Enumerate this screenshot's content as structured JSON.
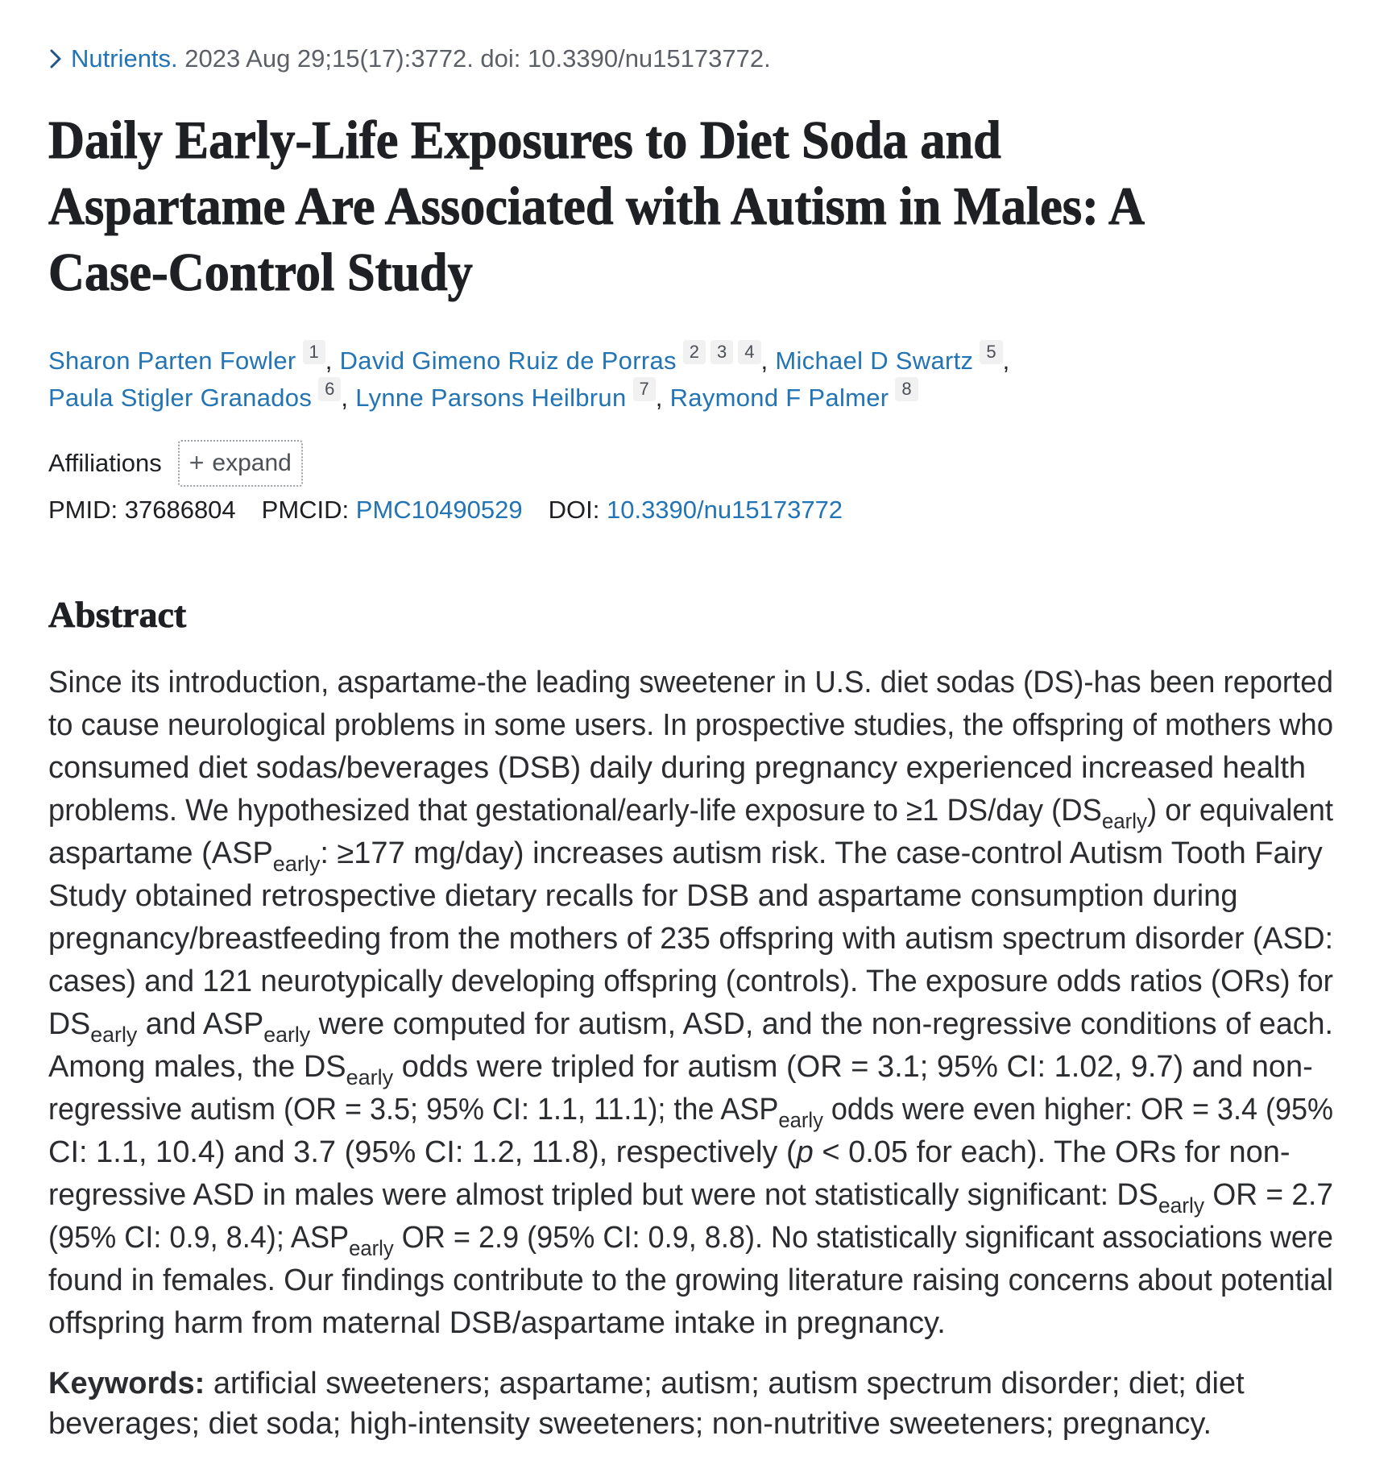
{
  "citation": {
    "journal": "Nutrients.",
    "rest": " 2023 Aug 29;15(17):3772. doi: 10.3390/nu15173772."
  },
  "title_lines": [
    "Daily Early-Life Exposures to Diet Soda and",
    "Aspartame Are Associated with Autism in Males: A",
    "Case-Control Study"
  ],
  "author_rows": [
    [
      {
        "name": "Sharon Parten Fowler",
        "sups": [
          "1"
        ],
        "sep": ", "
      },
      {
        "name": "David Gimeno Ruiz de Porras",
        "sups": [
          "2",
          "3",
          "4"
        ],
        "sep": ", "
      },
      {
        "name": "Michael D Swartz",
        "sups": [
          "5"
        ],
        "sep": ", "
      }
    ],
    [
      {
        "name": "Paula Stigler Granados",
        "sups": [
          "6"
        ],
        "sep": ", "
      },
      {
        "name": "Lynne Parsons Heilbrun",
        "sups": [
          "7"
        ],
        "sep": ", "
      },
      {
        "name": "Raymond F Palmer",
        "sups": [
          "8"
        ],
        "sep": ""
      }
    ]
  ],
  "affiliations": {
    "label": "Affiliations",
    "expand_plus": "+",
    "expand_label": "expand"
  },
  "ids": [
    {
      "label": "PMID: ",
      "value": "37686804",
      "link": false
    },
    {
      "label": "PMCID: ",
      "value": "PMC10490529",
      "link": true
    },
    {
      "label": "DOI: ",
      "value": "10.3390/nu15173772",
      "link": true
    }
  ],
  "abstract": {
    "heading": "Abstract",
    "lines": [
      [
        {
          "t": "Since its introduction, aspartame-the leading sweetener in U.S. diet sodas (DS)-has been reported"
        }
      ],
      [
        {
          "t": "to cause neurological problems in some users. In prospective studies, the offspring of mothers who"
        }
      ],
      [
        {
          "t": "consumed diet sodas/beverages (DSB) daily during pregnancy experienced increased health"
        }
      ],
      [
        {
          "t": "problems. We hypothesized that gestational/early-life exposure to ≥1 DS/day (DS"
        },
        {
          "t": "early",
          "s": "sub"
        },
        {
          "t": ") or equivalent"
        }
      ],
      [
        {
          "t": "aspartame (ASP"
        },
        {
          "t": "early",
          "s": "sub"
        },
        {
          "t": ": ≥177 mg/day) increases autism risk. The case-control Autism Tooth Fairy"
        }
      ],
      [
        {
          "t": "Study obtained retrospective dietary recalls for DSB and aspartame consumption during"
        }
      ],
      [
        {
          "t": "pregnancy/breastfeeding from the mothers of 235 offspring with autism spectrum disorder (ASD:"
        }
      ],
      [
        {
          "t": "cases) and 121 neurotypically developing offspring (controls). The exposure odds ratios (ORs) for"
        }
      ],
      [
        {
          "t": "DS"
        },
        {
          "t": "early",
          "s": "sub"
        },
        {
          "t": " and ASP"
        },
        {
          "t": "early",
          "s": "sub"
        },
        {
          "t": " were computed for autism, ASD, and the non-regressive conditions of each."
        }
      ],
      [
        {
          "t": "Among males, the DS"
        },
        {
          "t": "early",
          "s": "sub"
        },
        {
          "t": " odds were tripled for autism (OR = 3.1; 95% CI: 1.02, 9.7) and non-"
        }
      ],
      [
        {
          "t": "regressive autism (OR = 3.5; 95% CI: 1.1, 11.1); the ASP"
        },
        {
          "t": "early",
          "s": "sub"
        },
        {
          "t": " odds were even higher: OR = 3.4 (95%"
        }
      ],
      [
        {
          "t": "CI: 1.1, 10.4) and 3.7 (95% CI: 1.2, 11.8), respectively ("
        },
        {
          "t": "p",
          "s": "it"
        },
        {
          "t": " < 0.05 for each). The ORs for non-"
        }
      ],
      [
        {
          "t": "regressive ASD in males were almost tripled but were not statistically significant: DS"
        },
        {
          "t": "early",
          "s": "sub"
        },
        {
          "t": " OR = 2.7"
        }
      ],
      [
        {
          "t": "(95% CI: 0.9, 8.4); ASP"
        },
        {
          "t": "early",
          "s": "sub"
        },
        {
          "t": " OR = 2.9 (95% CI: 0.9, 8.8). No statistically significant associations were"
        }
      ],
      [
        {
          "t": "found in females. Our findings contribute to the growing literature raising concerns about potential"
        }
      ],
      [
        {
          "t": "offspring harm from maternal DSB/aspartame intake in pregnancy."
        }
      ]
    ]
  },
  "keywords": {
    "label": "Keywords:",
    "lines": [
      " artificial sweeteners; aspartame; autism; autism spectrum disorder; diet; diet",
      "beverages; diet soda; high-intensity sweeteners; non-nutritive sweeteners; pregnancy."
    ]
  },
  "colors": {
    "link": "#2274b5",
    "chevron": "#20558a"
  }
}
